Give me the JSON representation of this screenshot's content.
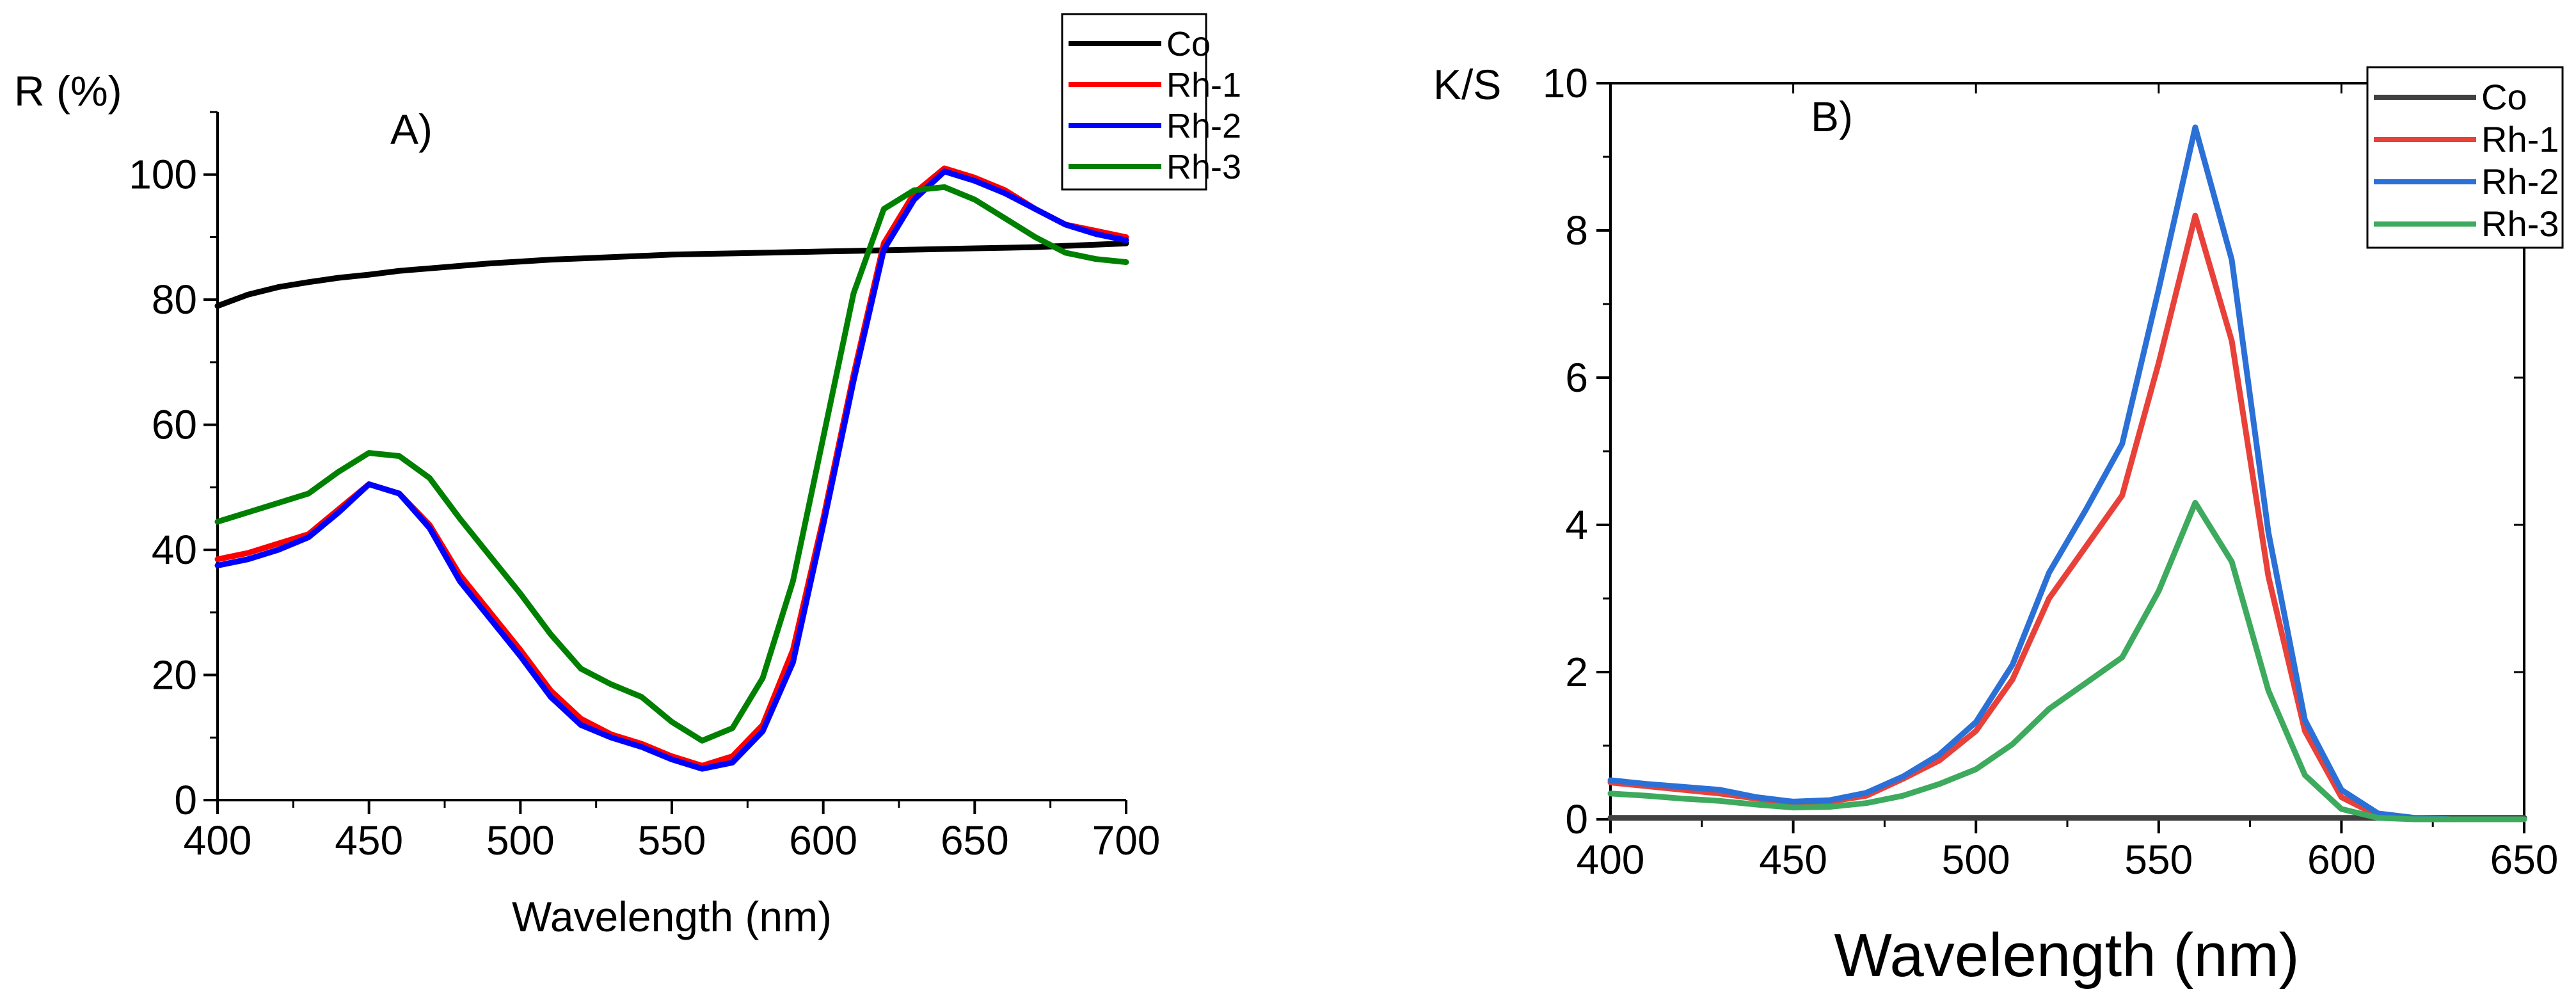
{
  "chart_data": [
    {
      "type": "line",
      "panel_label": "A)",
      "title": "",
      "xlabel": "Wavelength (nm)",
      "ylabel": "R (%)",
      "xlim": [
        400,
        700
      ],
      "ylim": [
        0,
        110
      ],
      "xticks": [
        400,
        450,
        500,
        550,
        600,
        650,
        700
      ],
      "yticks": [
        0,
        20,
        40,
        60,
        80,
        100
      ],
      "legend_position": "top-right",
      "series": [
        {
          "name": "Co",
          "color": "#000000",
          "x": [
            400,
            410,
            420,
            430,
            440,
            450,
            460,
            470,
            480,
            490,
            500,
            510,
            520,
            530,
            540,
            550,
            560,
            570,
            580,
            590,
            600,
            610,
            620,
            630,
            640,
            650,
            660,
            670,
            680,
            690,
            700
          ],
          "y": [
            79,
            80.8,
            82,
            82.8,
            83.5,
            84,
            84.6,
            85,
            85.4,
            85.8,
            86.1,
            86.4,
            86.6,
            86.8,
            87,
            87.2,
            87.3,
            87.4,
            87.5,
            87.6,
            87.7,
            87.8,
            87.9,
            88,
            88.1,
            88.2,
            88.3,
            88.4,
            88.6,
            88.8,
            89
          ]
        },
        {
          "name": "Rh-1",
          "color": "#ff0000",
          "x": [
            400,
            410,
            420,
            430,
            440,
            450,
            460,
            470,
            480,
            490,
            500,
            510,
            520,
            530,
            540,
            550,
            560,
            570,
            580,
            590,
            600,
            610,
            620,
            630,
            640,
            650,
            660,
            670,
            680,
            690,
            700
          ],
          "y": [
            38.5,
            39.5,
            41,
            42.5,
            46.5,
            50.5,
            49,
            44,
            36,
            30,
            24,
            17.5,
            13,
            10.5,
            9,
            7,
            5.5,
            7,
            12,
            24,
            45,
            68,
            89,
            97,
            101,
            99.5,
            97.5,
            94.5,
            92,
            91,
            90
          ]
        },
        {
          "name": "Rh-2",
          "color": "#0000ff",
          "x": [
            400,
            410,
            420,
            430,
            440,
            450,
            460,
            470,
            480,
            490,
            500,
            510,
            520,
            530,
            540,
            550,
            560,
            570,
            580,
            590,
            600,
            610,
            620,
            630,
            640,
            650,
            660,
            670,
            680,
            690,
            700
          ],
          "y": [
            37.5,
            38.5,
            40,
            42,
            46,
            50.5,
            49,
            43.5,
            35,
            29,
            23,
            16.5,
            12,
            10,
            8.5,
            6.5,
            5,
            6,
            11,
            22,
            44,
            67,
            88,
            96,
            100.5,
            99,
            97,
            94.5,
            92,
            90.5,
            89.5
          ]
        },
        {
          "name": "Rh-3",
          "color": "#008000",
          "x": [
            400,
            410,
            420,
            430,
            440,
            450,
            460,
            470,
            480,
            490,
            500,
            510,
            520,
            530,
            540,
            550,
            560,
            570,
            580,
            590,
            600,
            610,
            620,
            630,
            640,
            650,
            660,
            670,
            680,
            690,
            700
          ],
          "y": [
            44.5,
            46,
            47.5,
            49,
            52.5,
            55.5,
            55,
            51.5,
            45,
            39,
            33,
            26.5,
            21,
            18.5,
            16.5,
            12.5,
            9.5,
            11.5,
            19.5,
            35,
            58,
            81,
            94.5,
            97.5,
            98,
            96,
            93,
            90,
            87.5,
            86.5,
            86
          ]
        }
      ]
    },
    {
      "type": "line",
      "panel_label": "B)",
      "title": "",
      "xlabel": "Wavelength (nm)",
      "ylabel": "K/S",
      "xlim": [
        400,
        650
      ],
      "ylim": [
        0,
        10
      ],
      "xticks": [
        400,
        450,
        500,
        550,
        600,
        650
      ],
      "yticks": [
        0,
        2,
        4,
        6,
        8,
        10
      ],
      "legend_position": "top-right",
      "series": [
        {
          "name": "Co",
          "color": "#404040",
          "x": [
            400,
            650
          ],
          "y": [
            0.02,
            0.02
          ]
        },
        {
          "name": "Rh-1",
          "color": "#e8413a",
          "x": [
            400,
            410,
            420,
            430,
            440,
            450,
            460,
            470,
            480,
            490,
            500,
            510,
            520,
            530,
            540,
            550,
            560,
            570,
            580,
            590,
            600,
            610,
            620,
            630,
            640,
            650
          ],
          "y": [
            0.5,
            0.45,
            0.4,
            0.35,
            0.28,
            0.22,
            0.24,
            0.32,
            0.55,
            0.8,
            1.2,
            1.9,
            3.0,
            3.7,
            4.4,
            6.2,
            8.2,
            6.5,
            3.3,
            1.2,
            0.3,
            0.05,
            0.01,
            0,
            0,
            0
          ]
        },
        {
          "name": "Rh-2",
          "color": "#2b70d6",
          "x": [
            400,
            410,
            420,
            430,
            440,
            450,
            460,
            470,
            480,
            490,
            500,
            510,
            520,
            530,
            540,
            550,
            560,
            570,
            580,
            590,
            600,
            610,
            620,
            630,
            640,
            650
          ],
          "y": [
            0.53,
            0.48,
            0.44,
            0.4,
            0.3,
            0.24,
            0.26,
            0.36,
            0.58,
            0.88,
            1.32,
            2.1,
            3.35,
            4.2,
            5.1,
            7.2,
            9.4,
            7.6,
            3.9,
            1.35,
            0.4,
            0.08,
            0.02,
            0,
            0,
            0
          ]
        },
        {
          "name": "Rh-3",
          "color": "#3daa5e",
          "x": [
            400,
            410,
            420,
            430,
            440,
            450,
            460,
            470,
            480,
            490,
            500,
            510,
            520,
            530,
            540,
            550,
            560,
            570,
            580,
            590,
            600,
            610,
            620,
            630,
            640,
            650
          ],
          "y": [
            0.35,
            0.32,
            0.28,
            0.25,
            0.2,
            0.16,
            0.17,
            0.22,
            0.32,
            0.48,
            0.68,
            1.02,
            1.5,
            1.85,
            2.2,
            3.1,
            4.3,
            3.5,
            1.75,
            0.6,
            0.14,
            0.02,
            0,
            0,
            0,
            0
          ]
        }
      ]
    }
  ]
}
